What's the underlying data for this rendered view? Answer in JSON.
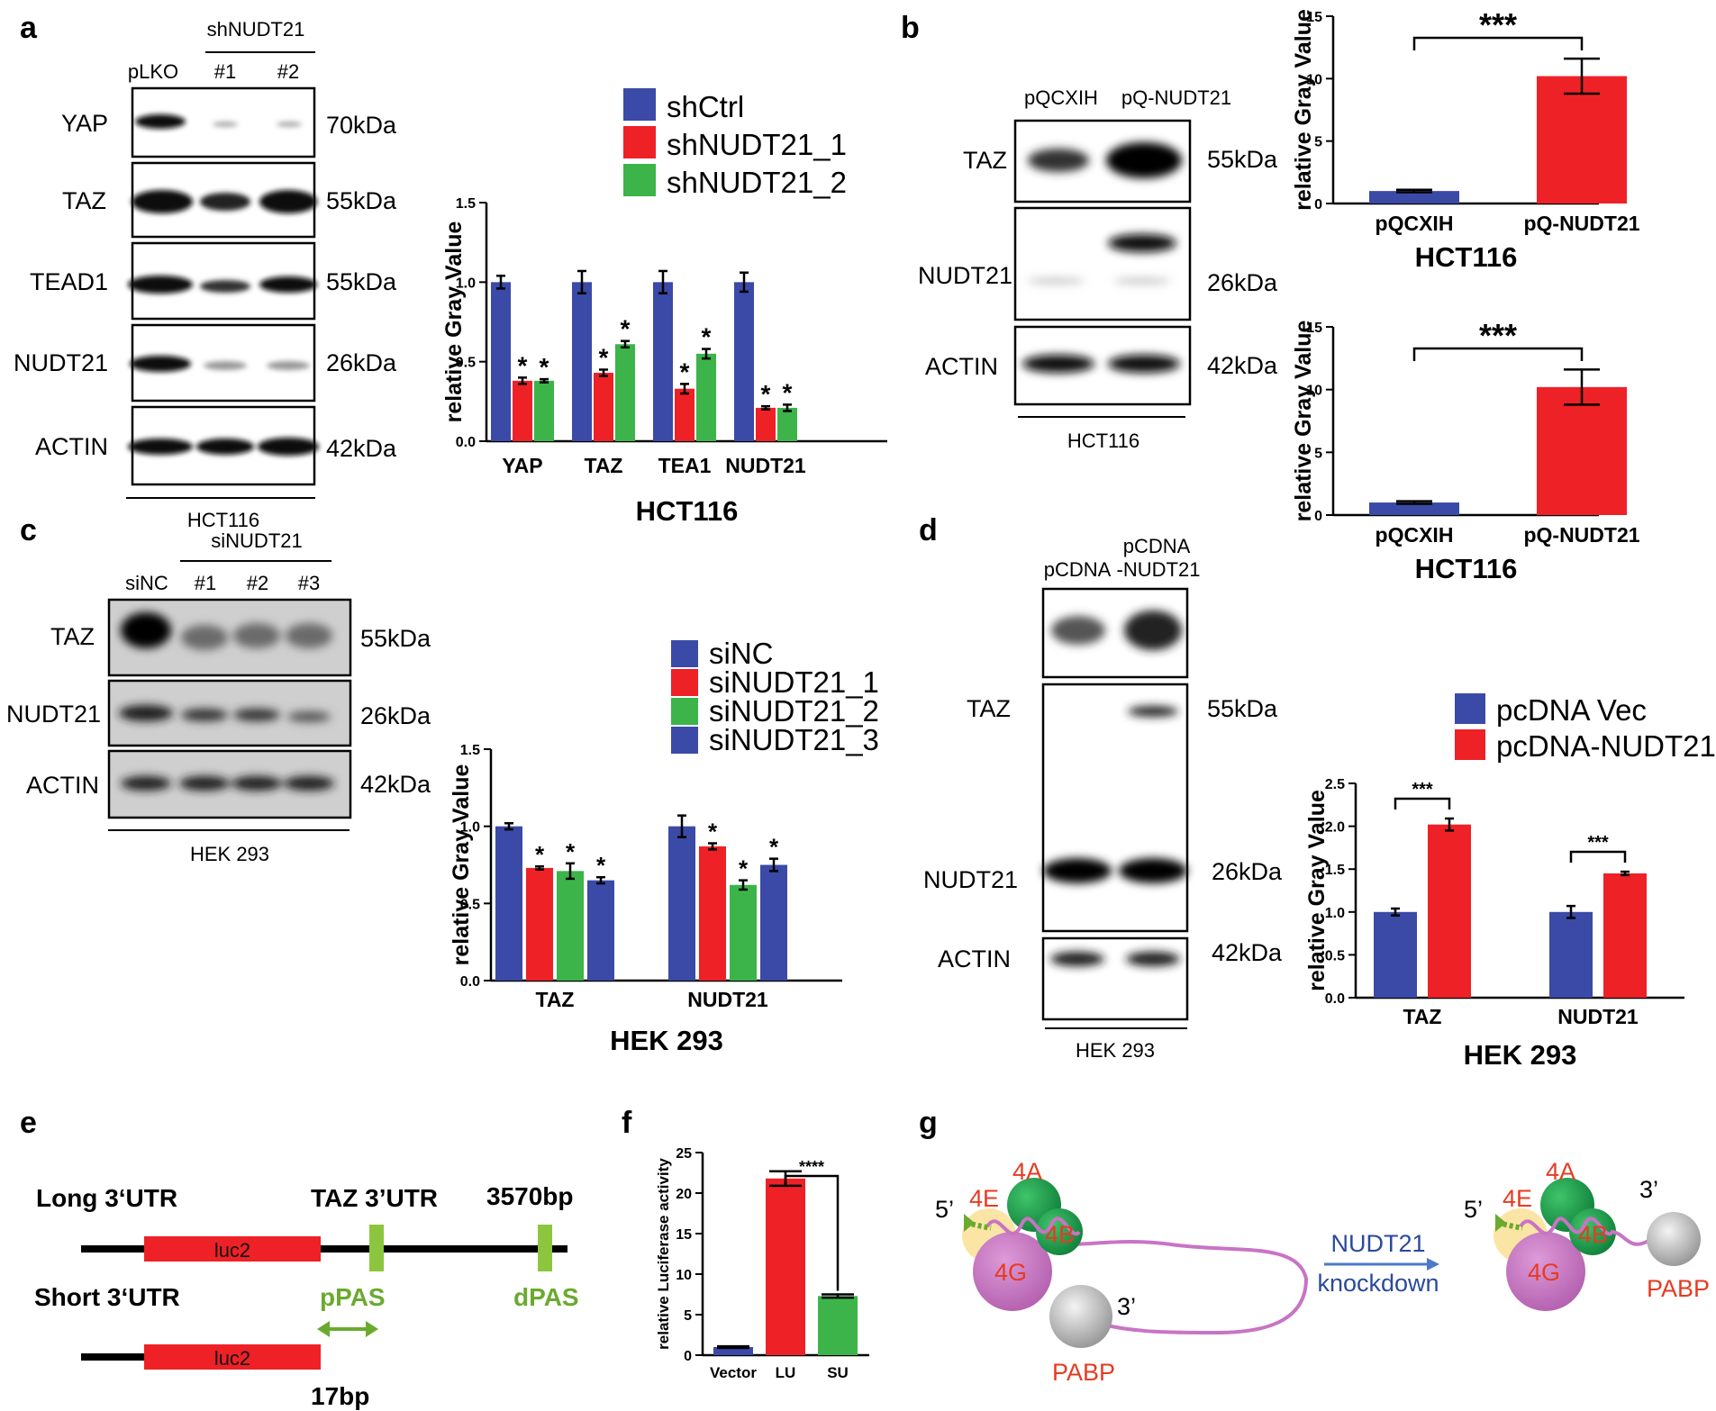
{
  "colors": {
    "blue": "#3a4aa6",
    "red": "#ee2127",
    "green": "#3cb44a",
    "mid_green": "#1f9e4c",
    "light_green": "#8cc63f",
    "pink": "#c874c4",
    "yellow": "#fbe5a5",
    "gray": "#c8c8c8",
    "orange_red": "#e63b22"
  },
  "panels": {
    "a": "a",
    "b": "b",
    "c": "c",
    "d": "d",
    "e": "e",
    "f": "f",
    "g": "g"
  },
  "blot_a": {
    "group": "shNUDT21",
    "lanes": [
      "pLKO",
      "#1",
      "#2"
    ],
    "proteins": [
      "YAP",
      "TAZ",
      "TEAD1",
      "NUDT21",
      "ACTIN"
    ],
    "sizes": [
      "70kDa",
      "55kDa",
      "55kDa",
      "26kDa",
      "42kDa"
    ],
    "cell": "HCT116"
  },
  "blot_b": {
    "lanes": [
      "pQCXIH",
      "pQ-NUDT21"
    ],
    "proteins": [
      "TAZ",
      "NUDT21",
      "ACTIN"
    ],
    "sizes": [
      "55kDa",
      "26kDa",
      "42kDa"
    ],
    "cell": "HCT116"
  },
  "blot_c": {
    "group": "siNUDT21",
    "lanes": [
      "siNC",
      "#1",
      "#2",
      "#3"
    ],
    "proteins": [
      "TAZ",
      "NUDT21",
      "ACTIN"
    ],
    "sizes": [
      "55kDa",
      "26kDa",
      "42kDa"
    ],
    "cell": "HEK 293"
  },
  "blot_d": {
    "lanes": [
      "pCDNA",
      "pCDNA",
      "-NUDT21"
    ],
    "proteins": [
      "TAZ",
      "NUDT21",
      "ACTIN"
    ],
    "sizes": [
      "55kDa",
      "26kDa",
      "42kDa"
    ],
    "cell": "HEK 293"
  },
  "chart_data": [
    {
      "id": "a",
      "type": "bar",
      "title": "HCT116",
      "ylabel": "relative Gray Value",
      "ylim": [
        0,
        1.5
      ],
      "yticks": [
        "0.0",
        "0.5",
        "1.0",
        "1.5"
      ],
      "categories": [
        "YAP",
        "TAZ",
        "TEA1",
        "NUDT21"
      ],
      "legend": "top-right",
      "series": [
        {
          "name": "shCtrl",
          "color": "#3a4aa6",
          "values": [
            1.0,
            1.0,
            1.0,
            1.0
          ],
          "err": [
            0.04,
            0.07,
            0.07,
            0.06
          ]
        },
        {
          "name": "shNUDT21_1",
          "color": "#ee2127",
          "values": [
            0.38,
            0.43,
            0.33,
            0.21
          ],
          "err": [
            0.02,
            0.02,
            0.03,
            0.01
          ]
        },
        {
          "name": "shNUDT21_2",
          "color": "#3cb44a",
          "values": [
            0.38,
            0.61,
            0.55,
            0.21
          ],
          "err": [
            0.01,
            0.02,
            0.03,
            0.02
          ]
        }
      ],
      "marks": [
        "*",
        "*",
        "*",
        "*",
        "*",
        "*",
        "*",
        "*"
      ]
    },
    {
      "id": "b1",
      "type": "bar",
      "title": "HCT116",
      "ylabel": "relative Gray Value",
      "ylim": [
        0,
        15
      ],
      "yticks": [
        "0",
        "5",
        "10",
        "15"
      ],
      "categories": [
        "pQCXIH",
        "pQ-NUDT21"
      ],
      "colors": [
        "#3a4aa6",
        "#ee2127"
      ],
      "values": [
        1.0,
        10.2
      ],
      "err": [
        0.1,
        1.4
      ],
      "sig": "***"
    },
    {
      "id": "b2",
      "type": "bar",
      "title": "HCT116",
      "ylabel": "relative Gray Value",
      "ylim": [
        0,
        15
      ],
      "yticks": [
        "0",
        "5",
        "10",
        "15"
      ],
      "categories": [
        "pQCXIH",
        "pQ-NUDT21"
      ],
      "colors": [
        "#3a4aa6",
        "#ee2127"
      ],
      "values": [
        1.0,
        10.2
      ],
      "err": [
        0.1,
        1.4
      ],
      "sig": "***"
    },
    {
      "id": "c",
      "type": "bar",
      "title": "HEK 293",
      "ylabel": "relative Gray Value",
      "ylim": [
        0,
        1.5
      ],
      "yticks": [
        "0.0",
        "0.5",
        "1.0",
        "1.5"
      ],
      "categories": [
        "TAZ",
        "NUDT21"
      ],
      "legend": "top-right",
      "series": [
        {
          "name": "siNC",
          "color": "#3a4aa6",
          "values": [
            1.0,
            1.0
          ],
          "err": [
            0.02,
            0.07
          ]
        },
        {
          "name": "siNUDT21_1",
          "color": "#ee2127",
          "values": [
            0.73,
            0.87
          ],
          "err": [
            0.01,
            0.02
          ]
        },
        {
          "name": "siNUDT21_2",
          "color": "#3cb44a",
          "values": [
            0.71,
            0.62
          ],
          "err": [
            0.05,
            0.03
          ]
        },
        {
          "name": "siNUDT21_3",
          "color": "#3a4aa6",
          "values": [
            0.65,
            0.75
          ],
          "err": [
            0.02,
            0.04
          ]
        }
      ],
      "marks": [
        "*",
        "*",
        "*",
        "*",
        "*",
        "*"
      ]
    },
    {
      "id": "d",
      "type": "bar",
      "title": "HEK 293",
      "ylabel": "relative Gray Value",
      "ylim": [
        0,
        2.5
      ],
      "yticks": [
        "0.0",
        "0.5",
        "1.0",
        "1.5",
        "2.0",
        "2.5"
      ],
      "categories": [
        "TAZ",
        "NUDT21"
      ],
      "legend": "top-right",
      "series": [
        {
          "name": "pcDNA Vec",
          "color": "#3a4aa6",
          "values": [
            1.0,
            1.0
          ],
          "err": [
            0.04,
            0.07
          ]
        },
        {
          "name": "pcDNA-NUDT21",
          "color": "#ee2127",
          "values": [
            2.02,
            1.45
          ],
          "err": [
            0.07,
            0.02
          ]
        }
      ],
      "sig": [
        "***",
        "***"
      ]
    },
    {
      "id": "f",
      "type": "bar",
      "ylabel": "relative Luciferase activity",
      "ylim": [
        0,
        25
      ],
      "yticks": [
        "0",
        "5",
        "10",
        "15",
        "20",
        "25"
      ],
      "categories": [
        "Vector",
        "LU",
        "SU"
      ],
      "colors": [
        "#3a4aa6",
        "#ee2127",
        "#3cb44a"
      ],
      "values": [
        1.0,
        21.8,
        7.3
      ],
      "err": [
        0.1,
        0.9,
        0.2
      ],
      "sig": "****"
    }
  ],
  "diagram_e": {
    "long": "Long 3‘UTR",
    "short": "Short  3‘UTR",
    "utr": "TAZ 3’UTR",
    "len": "3570bp",
    "gene": "luc2",
    "ppas": "pPAS",
    "dpas": "dPAS",
    "dist": "17bp"
  },
  "diagram_g": {
    "five": "5’",
    "three": "3’",
    "e4": "4E",
    "a4": "4A",
    "b4": "4B",
    "g4": "4G",
    "pabp": "PABP",
    "arrow1": "NUDT21",
    "arrow2": "knockdown"
  }
}
